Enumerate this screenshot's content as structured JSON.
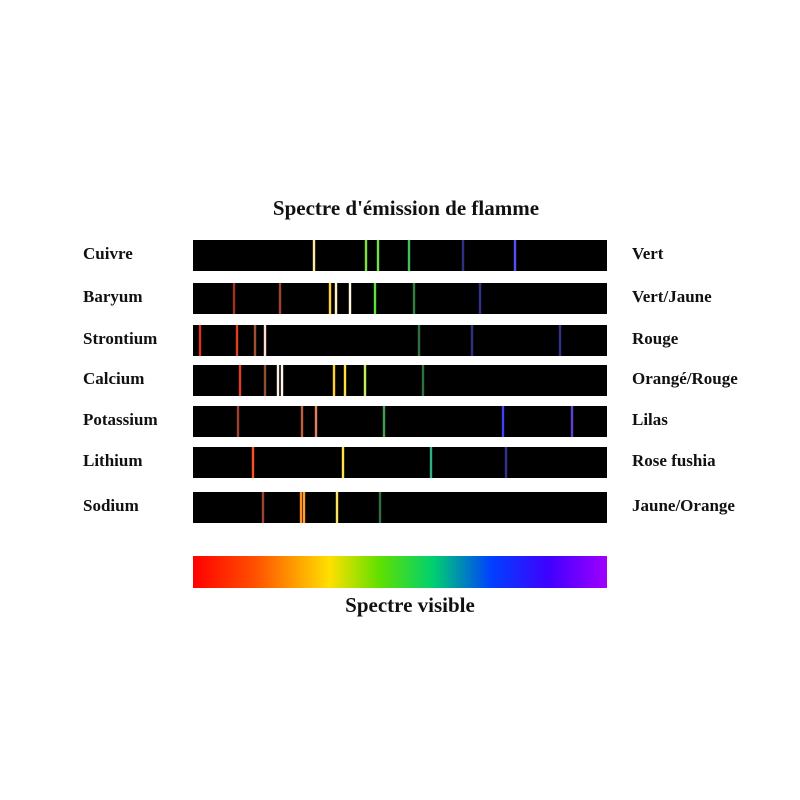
{
  "title": "Spectre d'émission de flamme",
  "rows": [
    {
      "element": "Cuivre",
      "color": "Vert"
    },
    {
      "element": "Baryum",
      "color": "Vert/Jaune"
    },
    {
      "element": "Strontium",
      "color": "Rouge"
    },
    {
      "element": "Calcium",
      "color": "Orangé/Rouge"
    },
    {
      "element": "Potassium",
      "color": "Lilas"
    },
    {
      "element": "Lithium",
      "color": "Rose fushia"
    },
    {
      "element": "Sodium",
      "color": "Jaune/Orange"
    }
  ],
  "spectrum_caption": "Spectre visible"
}
